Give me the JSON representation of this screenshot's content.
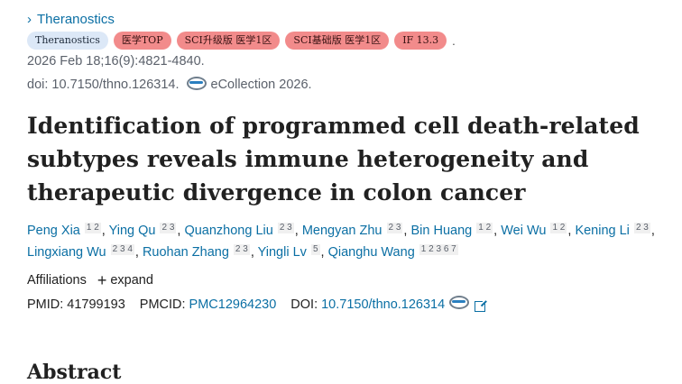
{
  "journal": {
    "chevron": "›",
    "name": "Theranostics"
  },
  "badges": [
    {
      "label": "Theranostics",
      "kind": "blue"
    },
    {
      "label": "医学TOP",
      "kind": "red"
    },
    {
      "label": "SCI升级版 医学1区",
      "kind": "red"
    },
    {
      "label": "SCI基础版 医学1区",
      "kind": "red"
    },
    {
      "label": "IF 13.3",
      "kind": "red"
    }
  ],
  "badge_trailer": ".",
  "citation": "2026 Feb 18;16(9):4821-4840.",
  "doi_line": {
    "doi": "doi: 10.7150/thno.126314.",
    "ecollection": "eCollection 2026."
  },
  "title": "Identification of programmed cell death-related subtypes reveals immune heterogeneity and therapeutic divergence in colon cancer",
  "authors": [
    {
      "name": "Peng Xia",
      "affs": "1 2"
    },
    {
      "name": "Ying Qu",
      "affs": "2 3"
    },
    {
      "name": "Quanzhong Liu",
      "affs": "2 3"
    },
    {
      "name": "Mengyan Zhu",
      "affs": "2 3"
    },
    {
      "name": "Bin Huang",
      "affs": "1 2"
    },
    {
      "name": "Wei Wu",
      "affs": "1 2"
    },
    {
      "name": "Kening Li",
      "affs": "2 3"
    },
    {
      "name": "Lingxiang Wu",
      "affs": "2 3 4"
    },
    {
      "name": "Ruohan Zhang",
      "affs": "2 3"
    },
    {
      "name": "Yingli Lv",
      "affs": "5"
    },
    {
      "name": "Qianghu Wang",
      "affs": "1 2 3 6 7"
    }
  ],
  "affiliations": {
    "label": "Affiliations",
    "expand": "expand"
  },
  "ids": {
    "pmid_label": "PMID:",
    "pmid": "41799193",
    "pmcid_label": "PMCID:",
    "pmcid": "PMC12964230",
    "doi_label": "DOI:",
    "doi": "10.7150/thno.126314"
  },
  "next_heading": "Abstract"
}
